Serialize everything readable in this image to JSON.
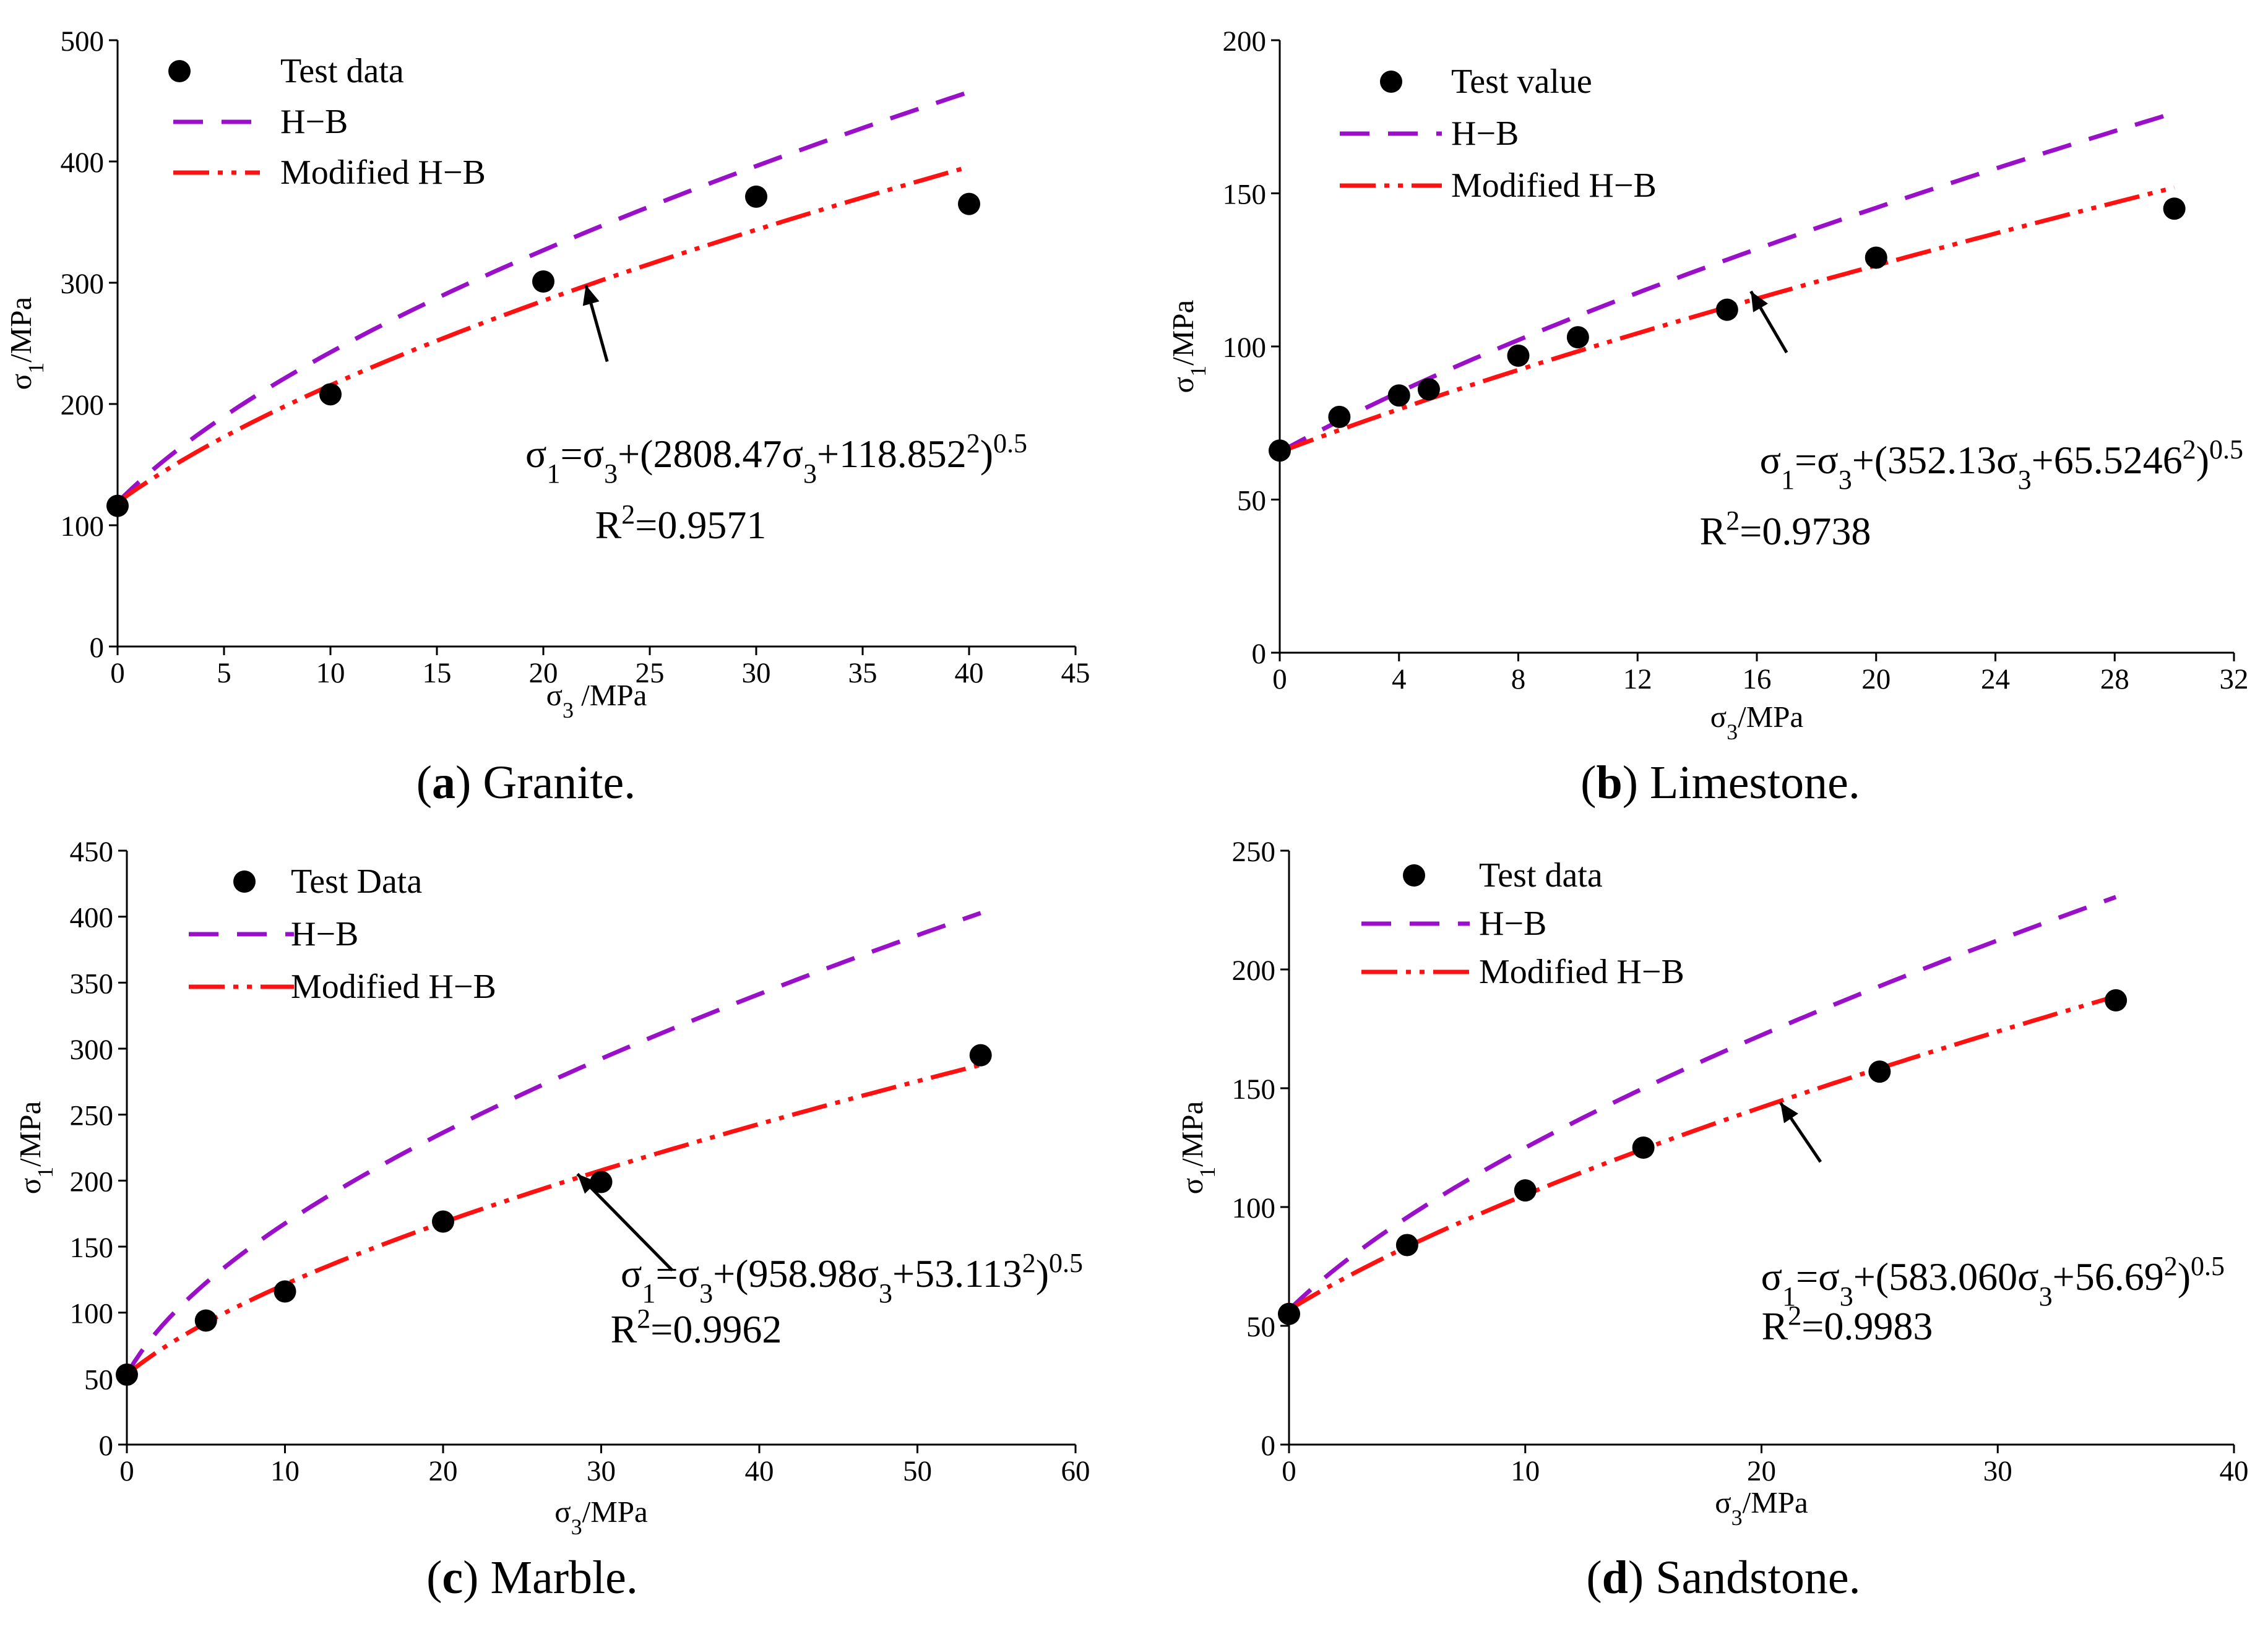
{
  "chart_data": [
    {
      "type": "scatter",
      "panel": "a",
      "caption_letter": "a",
      "caption_text": " Granite.",
      "xlabel_main": "σ",
      "xlabel_sub": "3",
      "xlabel_unit": " /MPa",
      "ylabel_main": "σ",
      "ylabel_sub": "1",
      "ylabel_unit": "/MPa",
      "xlim": [
        0,
        45
      ],
      "ylim": [
        0,
        500
      ],
      "xticks": [
        0,
        5,
        10,
        15,
        20,
        25,
        30,
        35,
        40,
        45
      ],
      "yticks": [
        0,
        100,
        200,
        300,
        400,
        500
      ],
      "legend": [
        "Test data",
        "H−B",
        "Modified H−B"
      ],
      "test_points": {
        "x": [
          0,
          10,
          20,
          30,
          40
        ],
        "y": [
          116,
          208,
          301,
          371,
          365
        ]
      },
      "hb_curve": {
        "sigma3_max": 40,
        "a": 4000,
        "b": 14127
      },
      "modified_curve": {
        "sigma3_max": 40,
        "a": 2808.47,
        "b": 14125.8
      },
      "equation": {
        "lhs": "σ",
        "s1": "1",
        "eq": "=σ",
        "s3": "3",
        "open": "+(2808.47σ",
        "s3b": "3",
        "mid": "+118.852",
        "sq": "2",
        "close": ")",
        "pow": "0.5"
      },
      "r2": {
        "r": "R",
        "sup": "2",
        "val": "=0.9571"
      },
      "arrow": {
        "from": [
          23,
          235
        ],
        "to": [
          22,
          298
        ]
      }
    },
    {
      "type": "scatter",
      "panel": "b",
      "caption_letter": "b",
      "caption_text": " Limestone.",
      "xlabel_main": "σ",
      "xlabel_sub": "3",
      "xlabel_unit": "/MPa",
      "ylabel_main": "σ",
      "ylabel_sub": "1",
      "ylabel_unit": "/MPa",
      "xlim": [
        0,
        32
      ],
      "ylim": [
        0,
        200
      ],
      "xticks": [
        0,
        4,
        8,
        12,
        16,
        20,
        24,
        28,
        32
      ],
      "yticks": [
        0,
        50,
        100,
        150,
        200
      ],
      "legend": [
        "Test value",
        "H−B",
        "Modified H−B"
      ],
      "test_points": {
        "x": [
          0,
          2,
          4,
          5,
          8,
          10,
          15,
          20,
          30
        ],
        "y": [
          66,
          77,
          84,
          86,
          97,
          103,
          112,
          129,
          145
        ]
      },
      "hb_curve": {
        "sigma3_max": 30,
        "a": 570,
        "b": 4293.5
      },
      "modified_curve": {
        "sigma3_max": 30,
        "a": 352.13,
        "b": 4293.5
      },
      "equation": {
        "lhs": "σ",
        "s1": "1",
        "eq": "=σ",
        "s3": "3",
        "open": "+(352.13σ",
        "s3b": "3",
        "mid": "+65.5246",
        "sq": "2",
        "close": ")",
        "pow": "0.5"
      },
      "r2": {
        "r": "R",
        "sup": "2",
        "val": "=0.9738"
      },
      "arrow": {
        "from": [
          17,
          98
        ],
        "to": [
          15.8,
          118
        ]
      }
    },
    {
      "type": "scatter",
      "panel": "c",
      "caption_letter": "c",
      "caption_text": " Marble.",
      "xlabel_main": "σ",
      "xlabel_sub": "3",
      "xlabel_unit": "/MPa",
      "ylabel_main": "σ",
      "ylabel_sub": "1",
      "ylabel_unit": "/MPa",
      "xlim": [
        0,
        60
      ],
      "ylim": [
        0,
        450
      ],
      "xticks": [
        0,
        10,
        20,
        30,
        40,
        50,
        60
      ],
      "yticks": [
        0,
        50,
        100,
        150,
        200,
        250,
        300,
        350,
        400,
        450
      ],
      "legend": [
        "Test Data",
        "H−B",
        "Modified H−B"
      ],
      "test_points": {
        "x": [
          0,
          5,
          10,
          20,
          30,
          54
        ],
        "y": [
          53,
          94,
          116,
          169,
          199,
          295
        ]
      },
      "hb_curve": {
        "sigma3_max": 54,
        "a": 2200,
        "b": 2821
      },
      "modified_curve": {
        "sigma3_max": 54,
        "a": 958.98,
        "b": 2821
      },
      "equation": {
        "lhs": "σ",
        "s1": "1",
        "eq": "=σ",
        "s3": "3",
        "open": "+(958.98σ",
        "s3b": "3",
        "mid": "+53.113",
        "sq": "2",
        "close": ")",
        "pow": "0.5"
      },
      "r2": {
        "r": "R",
        "sup": "2",
        "val": "=0.9962"
      },
      "arrow": {
        "from": [
          34.5,
          132
        ],
        "to": [
          28.5,
          205
        ]
      }
    },
    {
      "type": "scatter",
      "panel": "d",
      "caption_letter": "d",
      "caption_text": " Sandstone.",
      "xlabel_main": "σ",
      "xlabel_sub": "3",
      "xlabel_unit": "/MPa",
      "ylabel_main": "σ",
      "ylabel_sub": "1",
      "ylabel_unit": "/MPa",
      "xlim": [
        0,
        40
      ],
      "ylim": [
        0,
        250
      ],
      "xticks": [
        0,
        10,
        20,
        30,
        40
      ],
      "yticks": [
        0,
        50,
        100,
        150,
        200,
        250
      ],
      "legend": [
        "Test data",
        "H−B",
        "Modified H−B"
      ],
      "test_points": {
        "x": [
          0,
          5,
          10,
          15,
          25,
          35
        ],
        "y": [
          55,
          84,
          107,
          125,
          157,
          187
        ]
      },
      "hb_curve": {
        "sigma3_max": 35,
        "a": 1000,
        "b": 3214
      },
      "modified_curve": {
        "sigma3_max": 35,
        "a": 583.06,
        "b": 3214
      },
      "equation": {
        "lhs": "σ",
        "s1": "1",
        "eq": "=σ",
        "s3": "3",
        "open": "+(583.060σ",
        "s3b": "3",
        "mid": "+56.69",
        "sq": "2",
        "close": ")",
        "pow": "0.5"
      },
      "r2": {
        "r": "R",
        "sup": "2",
        "val": "=0.9983"
      },
      "arrow": {
        "from": [
          22.5,
          119
        ],
        "to": [
          20.8,
          144
        ]
      }
    }
  ],
  "colors": {
    "hb": "#9a10c8",
    "modified": "#ff1111",
    "points": "#000000",
    "axis": "#000000"
  }
}
